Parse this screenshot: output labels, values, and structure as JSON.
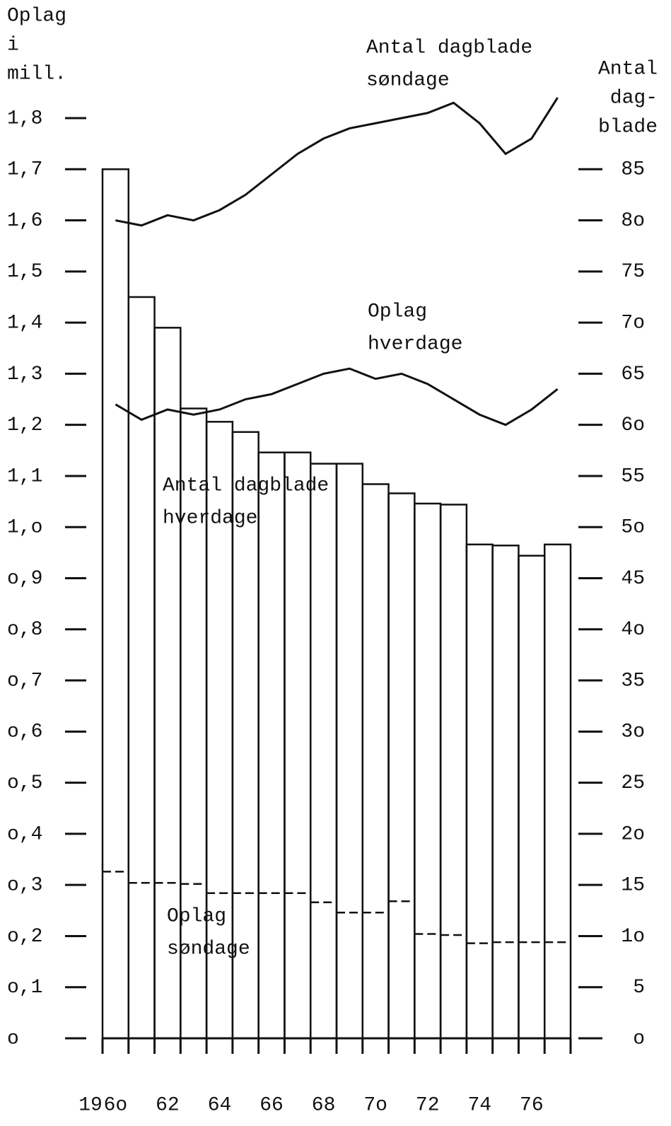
{
  "chart_data": {
    "type": "bar",
    "y_label": [
      "Oplag",
      "i",
      "mill."
    ],
    "y2_label": [
      "Antal",
      "dag-",
      "blade"
    ],
    "x_prefix": "19",
    "categories": [
      "6o",
      null,
      "62",
      null,
      "64",
      null,
      "66",
      null,
      "68",
      null,
      "7o",
      null,
      "72",
      null,
      "74",
      null,
      "76",
      null
    ],
    "ylim": [
      0,
      1.8
    ],
    "yticks": [
      {
        "value": 0,
        "label": "o"
      },
      {
        "value": 0.1,
        "label": "o,1"
      },
      {
        "value": 0.2,
        "label": "o,2"
      },
      {
        "value": 0.3,
        "label": "o,3"
      },
      {
        "value": 0.4,
        "label": "o,4"
      },
      {
        "value": 0.5,
        "label": "o,5"
      },
      {
        "value": 0.6,
        "label": "o,6"
      },
      {
        "value": 0.7,
        "label": "o,7"
      },
      {
        "value": 0.8,
        "label": "o,8"
      },
      {
        "value": 0.9,
        "label": "o,9"
      },
      {
        "value": 1.0,
        "label": "1,o"
      },
      {
        "value": 1.1,
        "label": "1,1"
      },
      {
        "value": 1.2,
        "label": "1,2"
      },
      {
        "value": 1.3,
        "label": "1,3"
      },
      {
        "value": 1.4,
        "label": "1,4"
      },
      {
        "value": 1.5,
        "label": "1,5"
      },
      {
        "value": 1.6,
        "label": "1,6"
      },
      {
        "value": 1.7,
        "label": "1,7"
      },
      {
        "value": 1.8,
        "label": "1,8"
      }
    ],
    "y2lim": [
      0,
      90
    ],
    "y2ticks": [
      {
        "value": 0,
        "label": "o"
      },
      5,
      {
        "value": 10,
        "label": "1o"
      },
      15,
      {
        "value": 20,
        "label": "2o"
      },
      25,
      {
        "value": 30,
        "label": "3o"
      },
      35,
      {
        "value": 40,
        "label": "4o"
      },
      45,
      {
        "value": 50,
        "label": "5o"
      },
      55,
      {
        "value": 60,
        "label": "6o"
      },
      65,
      {
        "value": 70,
        "label": "7o"
      },
      75,
      {
        "value": 80,
        "label": "8o"
      },
      85
    ],
    "color": "#111111",
    "series": [
      {
        "name": [
          "Antal dagblade",
          "hverdage"
        ],
        "type": "bar",
        "axis": "y2",
        "color": "#111111",
        "values": [
          85,
          72.5,
          69.5,
          61.6,
          60.3,
          59.3,
          57.3,
          57.3,
          56.2,
          56.2,
          54.2,
          53.3,
          52.3,
          52.2,
          48.3,
          48.2,
          47.2,
          48.3
        ]
      },
      {
        "name": [
          "Antal dagblade",
          "søndage"
        ],
        "type": "step",
        "dashed": true,
        "axis": "y2",
        "color": "#111111",
        "values": [
          16.3,
          15.2,
          15.2,
          15.1,
          14.2,
          14.2,
          14.2,
          14.2,
          13.3,
          12.3,
          12.3,
          13.4,
          10.2,
          10.1,
          9.3,
          9.4,
          9.4,
          9.4
        ]
      },
      {
        "name": [
          "Oplag",
          "hverdage"
        ],
        "type": "line",
        "axis": "y",
        "color": "#111111",
        "values": [
          1.6,
          1.59,
          1.61,
          1.6,
          1.62,
          1.65,
          1.69,
          1.73,
          1.76,
          1.78,
          1.79,
          1.8,
          1.81,
          1.83,
          1.79,
          1.73,
          1.76,
          1.84
        ]
      },
      {
        "name": [
          "Oplag",
          "søndage"
        ],
        "type": "line",
        "axis": "y",
        "color": "#111111",
        "values": [
          1.24,
          1.21,
          1.23,
          1.22,
          1.23,
          1.25,
          1.26,
          1.28,
          1.3,
          1.31,
          1.29,
          1.3,
          1.28,
          1.25,
          1.22,
          1.2,
          1.23,
          1.27
        ]
      }
    ]
  }
}
